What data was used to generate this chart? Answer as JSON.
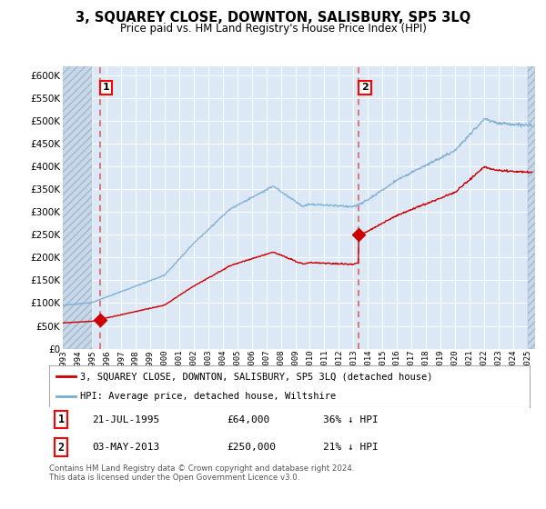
{
  "title": "3, SQUAREY CLOSE, DOWNTON, SALISBURY, SP5 3LQ",
  "subtitle": "Price paid vs. HM Land Registry's House Price Index (HPI)",
  "legend_line1": "3, SQUAREY CLOSE, DOWNTON, SALISBURY, SP5 3LQ (detached house)",
  "legend_line2": "HPI: Average price, detached house, Wiltshire",
  "sale1_label": "1",
  "sale1_date": "21-JUL-1995",
  "sale1_price": 64000,
  "sale1_year": 1995.55,
  "sale2_label": "2",
  "sale2_date": "03-MAY-2013",
  "sale2_price": 250000,
  "sale2_year": 2013.34,
  "footnote": "Contains HM Land Registry data © Crown copyright and database right 2024.\nThis data is licensed under the Open Government Licence v3.0.",
  "hpi_color": "#7aadd4",
  "sale_color": "#cc0000",
  "dashed_line_color": "#e06060",
  "background_plot": "#dce8f5",
  "background_fig": "#ffffff",
  "grid_color": "#ffffff",
  "ylim": [
    0,
    620000
  ],
  "yticks": [
    0,
    50000,
    100000,
    150000,
    200000,
    250000,
    300000,
    350000,
    400000,
    450000,
    500000,
    550000,
    600000
  ],
  "xmin": 1993,
  "xmax": 2025.5,
  "hatch_end": 1995.0
}
